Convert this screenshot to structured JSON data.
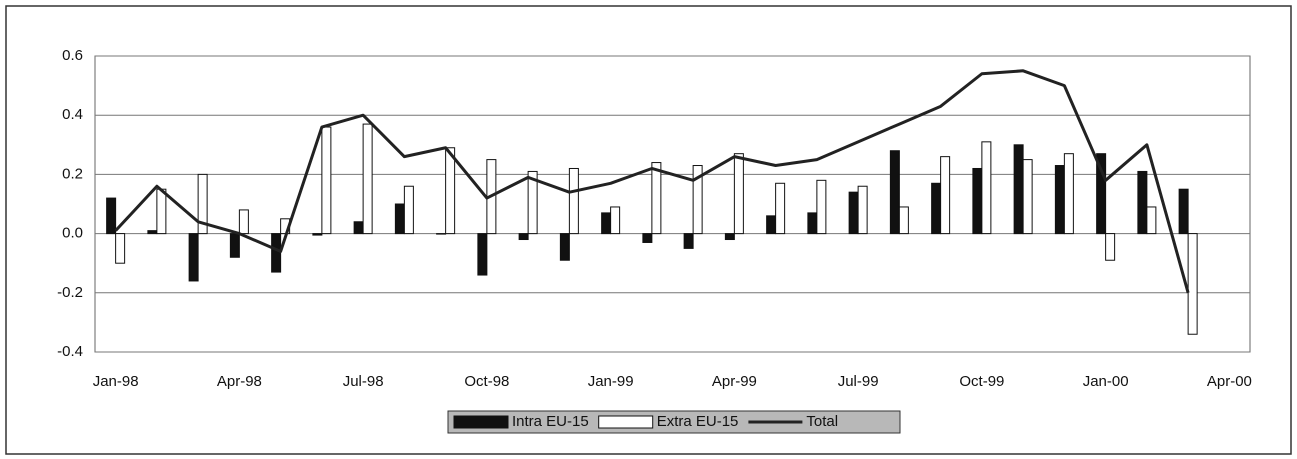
{
  "chart_data": {
    "type": "bar_line",
    "categories": [
      "Jan-98",
      null,
      null,
      "Apr-98",
      null,
      null,
      "Jul-98",
      null,
      null,
      "Oct-98",
      null,
      null,
      "Jan-99",
      null,
      null,
      "Apr-99",
      null,
      null,
      "Jul-99",
      null,
      null,
      "Oct-99",
      null,
      null,
      "Jan-00",
      null,
      null,
      "Apr-00"
    ],
    "series": [
      {
        "name": "Intra EU-15",
        "kind": "bar",
        "color": "#111111",
        "values": [
          0.12,
          0.01,
          -0.16,
          -0.08,
          -0.13,
          -0.005,
          0.04,
          0.1,
          0.0,
          -0.14,
          -0.02,
          -0.09,
          0.07,
          -0.03,
          -0.05,
          -0.02,
          0.06,
          0.07,
          0.14,
          0.28,
          0.17,
          0.22,
          0.3,
          0.23,
          0.27,
          0.21,
          0.15,
          null
        ]
      },
      {
        "name": "Extra EU-15",
        "kind": "bar",
        "color": "#ffffff",
        "values": [
          -0.1,
          0.15,
          0.2,
          0.08,
          0.05,
          0.36,
          0.37,
          0.16,
          0.29,
          0.25,
          0.21,
          0.22,
          0.09,
          0.24,
          0.23,
          0.27,
          0.17,
          0.18,
          0.16,
          0.09,
          0.26,
          0.31,
          0.25,
          0.27,
          -0.09,
          0.09,
          -0.34,
          null
        ]
      },
      {
        "name": "Total",
        "kind": "line",
        "color": "#222222",
        "values": [
          0.01,
          0.16,
          0.04,
          0.0,
          -0.06,
          0.36,
          0.4,
          0.26,
          0.29,
          0.12,
          0.19,
          0.14,
          0.17,
          0.22,
          0.18,
          0.26,
          0.23,
          0.25,
          0.31,
          0.37,
          0.43,
          0.54,
          0.55,
          0.5,
          0.18,
          0.3,
          -0.2,
          null
        ]
      }
    ],
    "ylim": [
      -0.4,
      0.6
    ],
    "yticks": [
      {
        "value": -0.4,
        "label": "-0.4"
      },
      {
        "value": -0.2,
        "label": "-0.2"
      },
      {
        "value": 0,
        "label": "0.0"
      },
      0.2,
      0.4,
      0.6
    ],
    "grid": true,
    "legend": "bottom"
  }
}
